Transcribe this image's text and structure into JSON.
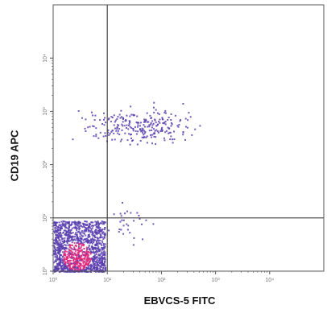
{
  "chart_data": {
    "type": "scatter",
    "title": "",
    "xlabel": "EBVCS-5 FITC",
    "ylabel": "CD19 APC",
    "x_scale": "log",
    "y_scale": "log",
    "xlim": [
      1,
      100000
    ],
    "ylim": [
      1,
      100000
    ],
    "x_ticks": [
      "10⁰",
      "10¹",
      "10²",
      "10³",
      "10⁴"
    ],
    "y_ticks": [
      "10⁰",
      "10¹",
      "10²",
      "10³",
      "10⁴"
    ],
    "gates": {
      "x": 10,
      "y": 10
    },
    "grid": false,
    "colors": {
      "low_density": "#5a3fb0",
      "high_density": "#e0267a",
      "axis": "#555555"
    },
    "populations": [
      {
        "name": "",
        "x_range": [
          1,
          9
        ],
        "y_range": [
          1,
          9
        ],
        "approx_count": 1400,
        "density": "high"
      },
      {
        "name": "",
        "x_range": [
          3,
          500
        ],
        "y_range": [
          200,
          1500
        ],
        "approx_count": 260,
        "density": "low"
      },
      {
        "name": "",
        "x_range": [
          8,
          60
        ],
        "y_range": [
          2,
          40
        ],
        "approx_count": 30,
        "density": "low"
      }
    ]
  }
}
